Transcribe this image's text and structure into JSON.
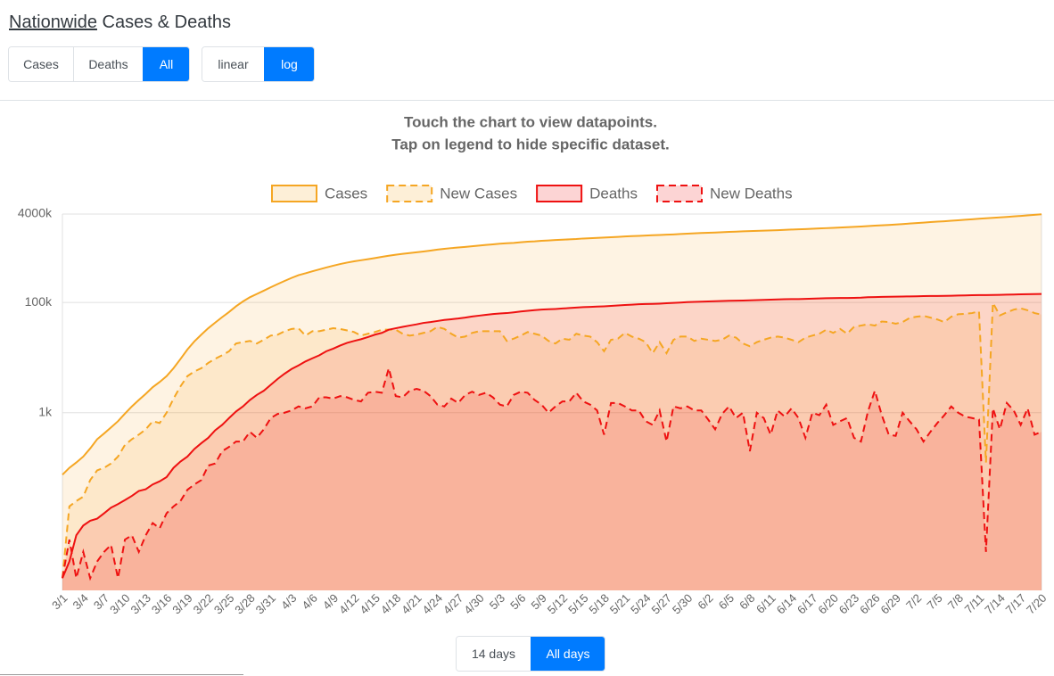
{
  "header": {
    "link": "Nationwide",
    "text": "Cases & Deaths"
  },
  "dataset_buttons": [
    "Cases",
    "Deaths",
    "All"
  ],
  "dataset_active": 2,
  "scale_buttons": [
    "linear",
    "log"
  ],
  "scale_active": 1,
  "instructions": [
    "Touch the chart to view datapoints.",
    "Tap on legend to hide specific dataset."
  ],
  "range_buttons": [
    "14 days",
    "All days"
  ],
  "range_active": 1,
  "chart_data": {
    "type": "area",
    "log_scale": true,
    "grid": true,
    "legend": "top",
    "ylim": [
      0.6,
      4000000
    ],
    "yticks": [
      {
        "value": 1000,
        "label": "1k"
      },
      {
        "value": 100000,
        "label": "100k"
      },
      {
        "value": 4000000,
        "label": "4000k"
      }
    ],
    "categories": [
      "3/1",
      null,
      null,
      "3/4",
      null,
      null,
      "3/7",
      null,
      null,
      "3/10",
      null,
      null,
      "3/13",
      null,
      null,
      "3/16",
      null,
      null,
      "3/19",
      null,
      null,
      "3/22",
      null,
      null,
      "3/25",
      null,
      null,
      "3/28",
      null,
      null,
      "3/31",
      null,
      null,
      "4/3",
      null,
      null,
      "4/6",
      null,
      null,
      "4/9",
      null,
      null,
      "4/12",
      null,
      null,
      "4/15",
      null,
      null,
      "4/18",
      null,
      null,
      "4/21",
      null,
      null,
      "4/24",
      null,
      null,
      "4/27",
      null,
      null,
      "4/30",
      null,
      null,
      "5/3",
      null,
      null,
      "5/6",
      null,
      null,
      "5/9",
      null,
      null,
      "5/12",
      null,
      null,
      "5/15",
      null,
      null,
      "5/18",
      null,
      null,
      "5/21",
      null,
      null,
      "5/24",
      null,
      null,
      "5/27",
      null,
      null,
      "5/30",
      null,
      null,
      "6/2",
      null,
      null,
      "6/5",
      null,
      null,
      "6/8",
      null,
      null,
      "6/11",
      null,
      null,
      "6/14",
      null,
      null,
      "6/17",
      null,
      null,
      "6/20",
      null,
      null,
      "6/23",
      null,
      null,
      "6/26",
      null,
      null,
      "6/29",
      null,
      null,
      "7/2",
      null,
      null,
      "7/5",
      null,
      null,
      "7/8",
      null,
      null,
      "7/11",
      null,
      null,
      "7/14",
      null,
      null,
      "7/17",
      null,
      null,
      "7/20"
    ],
    "series": [
      {
        "name": "Cases",
        "color": "#f5a623",
        "dashed": false,
        "values": [
          75,
          100,
          125,
          160,
          225,
          330,
          420,
          540,
          700,
          960,
          1300,
          1700,
          2200,
          2900,
          3600,
          4600,
          6400,
          9400,
          14000,
          19600,
          26000,
          34000,
          43000,
          54000,
          67000,
          85000,
          104000,
          124000,
          142000,
          163000,
          188000,
          215000,
          245000,
          278000,
          312000,
          337000,
          367000,
          397000,
          429000,
          463000,
          496000,
          527000,
          556000,
          581000,
          608000,
          637000,
          669000,
          701000,
          733000,
          760000,
          785000,
          811000,
          839000,
          869000,
          905000,
          938000,
          965000,
          988000,
          1012000,
          1040000,
          1070000,
          1100000,
          1130000,
          1160000,
          1180000,
          1200000,
          1230000,
          1260000,
          1280000,
          1310000,
          1330000,
          1350000,
          1370000,
          1390000,
          1410000,
          1440000,
          1460000,
          1480000,
          1500000,
          1520000,
          1540000,
          1570000,
          1590000,
          1610000,
          1630000,
          1650000,
          1670000,
          1690000,
          1710000,
          1740000,
          1760000,
          1790000,
          1810000,
          1830000,
          1850000,
          1870000,
          1900000,
          1920000,
          1940000,
          1960000,
          1980000,
          2000000,
          2020000,
          2040000,
          2070000,
          2090000,
          2110000,
          2130000,
          2160000,
          2190000,
          2220000,
          2250000,
          2280000,
          2310000,
          2340000,
          2380000,
          2420000,
          2460000,
          2500000,
          2540000,
          2580000,
          2630000,
          2690000,
          2740000,
          2800000,
          2860000,
          2910000,
          2960000,
          3020000,
          3080000,
          3150000,
          3220000,
          3290000,
          3350000,
          3410000,
          3480000,
          3550000,
          3620000,
          3700000,
          3780000,
          3870000,
          3960000
        ]
      },
      {
        "name": "New Cases",
        "color": "#f5a623",
        "dashed": true,
        "values": [
          1,
          20,
          25,
          30,
          60,
          90,
          100,
          120,
          160,
          260,
          330,
          400,
          500,
          700,
          650,
          1000,
          1800,
          3000,
          4600,
          5600,
          6400,
          8000,
          9500,
          11000,
          13000,
          18000,
          19000,
          20000,
          18000,
          21000,
          25000,
          26000,
          30000,
          33000,
          34000,
          25000,
          30000,
          30000,
          32000,
          34000,
          33000,
          31000,
          29000,
          25000,
          27000,
          29000,
          32000,
          32000,
          32000,
          27000,
          25000,
          26000,
          28000,
          30000,
          36000,
          33000,
          27000,
          23000,
          24000,
          28000,
          30000,
          30000,
          30000,
          30000,
          20000,
          22000,
          25000,
          29000,
          27000,
          25000,
          20000,
          18000,
          22000,
          21000,
          27000,
          25000,
          24000,
          19000,
          13000,
          21000,
          22000,
          28000,
          24000,
          22000,
          19000,
          12000,
          19000,
          12000,
          21000,
          24000,
          24000,
          20000,
          22000,
          21000,
          20000,
          21000,
          25000,
          23000,
          18000,
          16000,
          19000,
          21000,
          23000,
          24000,
          23000,
          21000,
          19000,
          23000,
          25000,
          27000,
          32000,
          28000,
          33000,
          27000,
          36000,
          38000,
          40000,
          38000,
          45000,
          44000,
          41000,
          44000,
          52000,
          55000,
          57000,
          53000,
          49000,
          44000,
          55000,
          61000,
          62000,
          64000,
          69000,
          125,
          98000,
          58000,
          66000,
          74000,
          78000,
          72000,
          64000,
          60000
        ]
      },
      {
        "name": "Deaths",
        "color": "#ee1111",
        "dashed": false,
        "values": [
          1,
          2,
          6,
          9,
          11,
          12,
          15,
          19,
          22,
          26,
          31,
          38,
          41,
          50,
          57,
          68,
          100,
          130,
          160,
          220,
          280,
          350,
          480,
          600,
          800,
          1050,
          1300,
          1700,
          2100,
          2500,
          3200,
          4100,
          5100,
          6200,
          7200,
          8500,
          9700,
          11000,
          13000,
          14500,
          16500,
          18500,
          20000,
          21500,
          23500,
          26000,
          28000,
          32000,
          34000,
          36000,
          38000,
          40000,
          42500,
          44000,
          46000,
          48000,
          49500,
          51000,
          53000,
          55500,
          57500,
          59500,
          61500,
          63000,
          64000,
          66000,
          68500,
          70500,
          72500,
          74000,
          75000,
          76000,
          77500,
          79000,
          80500,
          82000,
          83000,
          84000,
          85000,
          86500,
          88000,
          89500,
          91000,
          92500,
          93500,
          94000,
          95000,
          96500,
          98000,
          99500,
          101000,
          102000,
          103000,
          104000,
          105000,
          106000,
          107000,
          107500,
          108000,
          109000,
          110000,
          111000,
          112000,
          113000,
          114000,
          114500,
          115000,
          116000,
          117000,
          118000,
          119000,
          119500,
          120000,
          120500,
          121000,
          122000,
          124000,
          125000,
          126000,
          126500,
          127000,
          128000,
          128500,
          129000,
          130000,
          130500,
          131000,
          131500,
          132000,
          133000,
          134000,
          135000,
          135500,
          136000,
          136500,
          137000,
          138000,
          139000,
          140000,
          141000,
          141500,
          142000
        ]
      },
      {
        "name": "New Deaths",
        "color": "#ee1111",
        "dashed": true,
        "values": [
          1,
          5,
          1,
          3,
          1,
          2,
          3,
          4,
          1,
          5,
          6,
          3,
          6,
          10,
          8,
          15,
          20,
          25,
          40,
          50,
          60,
          110,
          120,
          200,
          240,
          300,
          300,
          450,
          350,
          500,
          800,
          950,
          1000,
          1100,
          1300,
          1200,
          1300,
          1900,
          1900,
          1800,
          2000,
          1900,
          1700,
          1600,
          2300,
          2400,
          2300,
          6400,
          2000,
          1900,
          2500,
          2700,
          2500,
          2000,
          1400,
          1300,
          1800,
          1500,
          2100,
          2400,
          2100,
          2300,
          1900,
          1400,
          1300,
          2100,
          2400,
          2300,
          1700,
          1400,
          1000,
          1300,
          1600,
          1600,
          2300,
          1600,
          1400,
          1100,
          400,
          1500,
          1500,
          1300,
          1100,
          1100,
          700,
          600,
          1100,
          300,
          1300,
          1200,
          1300,
          1100,
          1100,
          750,
          500,
          950,
          1300,
          800,
          1000,
          200,
          1000,
          800,
          400,
          1100,
          850,
          1200,
          800,
          350,
          1000,
          900,
          1400,
          600,
          700,
          800,
          350,
          300,
          1050,
          2500,
          900,
          400,
          380,
          1000,
          700,
          500,
          300,
          450,
          650,
          900,
          1300,
          1000,
          850,
          800,
          750,
          3,
          1200,
          500,
          1500,
          1100,
          600,
          1200,
          400,
          450
        ]
      }
    ]
  }
}
